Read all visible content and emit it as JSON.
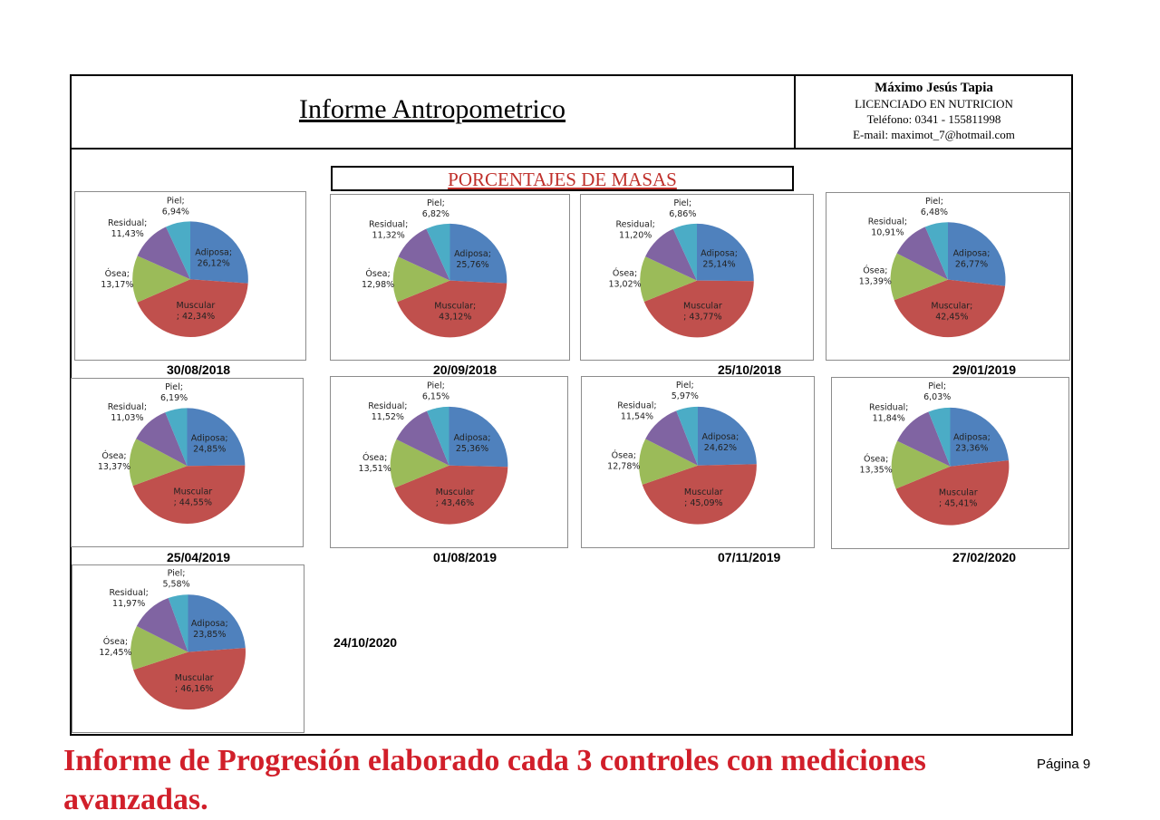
{
  "header": {
    "title": "Informe Antropometrico",
    "author_name": "Máximo Jesús Tapia",
    "author_profession": "LICENCIADO EN NUTRICION",
    "author_phone": "Teléfono: 0341 - 155811998",
    "author_email": "E-mail: maximot_7@hotmail.com"
  },
  "section_title": "PORCENTAJES DE MASAS",
  "series_colors": {
    "Adiposa": "#4f81bd",
    "Muscular": "#c0504d",
    "Ósea": "#9bbb59",
    "Residual": "#8064a2",
    "Piel": "#4bacc6"
  },
  "chart_data": [
    {
      "type": "pie",
      "date": "30/08/2018",
      "categories": [
        "Adiposa",
        "Muscular",
        "Ósea",
        "Residual",
        "Piel"
      ],
      "values": [
        26.12,
        42.34,
        13.17,
        11.43,
        6.94
      ],
      "labels": [
        "Adiposa;\n26,12%",
        "Muscular\n; 42,34%",
        "Ósea;\n13,17%",
        "Residual;\n11,43%",
        "Piel;\n6,94%"
      ]
    },
    {
      "type": "pie",
      "date": "20/09/2018",
      "categories": [
        "Adiposa",
        "Muscular",
        "Ósea",
        "Residual",
        "Piel"
      ],
      "values": [
        25.76,
        43.12,
        12.98,
        11.32,
        6.82
      ],
      "labels": [
        "Adiposa;\n25,76%",
        "Muscular;\n43,12%",
        "Ósea;\n12,98%",
        "Residual;\n11,32%",
        "Piel;\n6,82%"
      ]
    },
    {
      "type": "pie",
      "date": "25/10/2018",
      "categories": [
        "Adiposa",
        "Muscular",
        "Ósea",
        "Residual",
        "Piel"
      ],
      "values": [
        25.14,
        43.77,
        13.02,
        11.2,
        6.86
      ],
      "labels": [
        "Adiposa;\n25,14%",
        "Muscular\n; 43,77%",
        "Ósea;\n13,02%",
        "Residual;\n11,20%",
        "Piel;\n6,86%"
      ]
    },
    {
      "type": "pie",
      "date": "29/01/2019",
      "categories": [
        "Adiposa",
        "Muscular",
        "Ósea",
        "Residual",
        "Piel"
      ],
      "values": [
        26.77,
        42.45,
        13.39,
        10.91,
        6.48
      ],
      "labels": [
        "Adiposa;\n26,77%",
        "Muscular;\n42,45%",
        "Ósea;\n13,39%",
        "Residual;\n10,91%",
        "Piel;\n6,48%"
      ]
    },
    {
      "type": "pie",
      "date": "25/04/2019",
      "categories": [
        "Adiposa",
        "Muscular",
        "Ósea",
        "Residual",
        "Piel"
      ],
      "values": [
        24.85,
        44.55,
        13.37,
        11.03,
        6.19
      ],
      "labels": [
        "Adiposa;\n24,85%",
        "Muscular\n; 44,55%",
        "Ósea;\n13,37%",
        "Residual;\n11,03%",
        "Piel;\n6,19%"
      ]
    },
    {
      "type": "pie",
      "date": "01/08/2019",
      "categories": [
        "Adiposa",
        "Muscular",
        "Ósea",
        "Residual",
        "Piel"
      ],
      "values": [
        25.36,
        43.46,
        13.51,
        11.52,
        6.15
      ],
      "labels": [
        "Adiposa;\n25,36%",
        "Muscular\n; 43,46%",
        "Ósea;\n13,51%",
        "Residual;\n11,52%",
        "Piel;\n6,15%"
      ]
    },
    {
      "type": "pie",
      "date": "07/11/2019",
      "categories": [
        "Adiposa",
        "Muscular",
        "Ósea",
        "Residual",
        "Piel"
      ],
      "values": [
        24.62,
        45.09,
        12.78,
        11.54,
        5.97
      ],
      "labels": [
        "Adiposa;\n24,62%",
        "Muscular\n; 45,09%",
        "Ósea;\n12,78%",
        "Residual;\n11,54%",
        "Piel;\n5,97%"
      ]
    },
    {
      "type": "pie",
      "date": "27/02/2020",
      "categories": [
        "Adiposa",
        "Muscular",
        "Ósea",
        "Residual",
        "Piel"
      ],
      "values": [
        23.36,
        45.41,
        13.35,
        11.84,
        6.03
      ],
      "labels": [
        "Adiposa;\n23,36%",
        "Muscular\n; 45,41%",
        "Ósea;\n13,35%",
        "Residual;\n11,84%",
        "Piel;\n6,03%"
      ]
    },
    {
      "type": "pie",
      "date": "24/10/2020",
      "categories": [
        "Adiposa",
        "Muscular",
        "Ósea",
        "Residual",
        "Piel"
      ],
      "values": [
        23.85,
        46.16,
        12.45,
        11.97,
        5.58
      ],
      "labels": [
        "Adiposa;\n23,85%",
        "Muscular\n; 46,16%",
        "Ósea;\n12,45%",
        "Residual;\n11,97%",
        "Piel;\n5,58%"
      ]
    }
  ],
  "footer": {
    "text": "Informe de Progresión elaborado cada 3 controles con mediciones avanzadas.",
    "page": "Página 9"
  }
}
